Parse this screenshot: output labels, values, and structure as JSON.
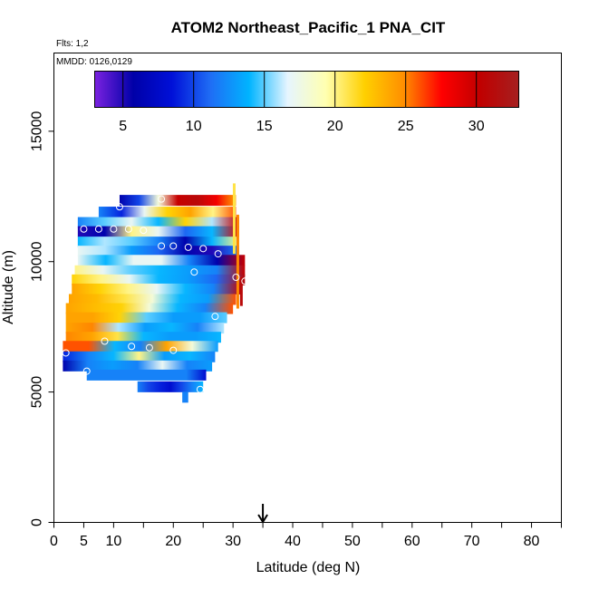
{
  "chart_data": {
    "type": "heatmap",
    "title": "ATOM2 Northeast_Pacific_1 PNA_CIT",
    "flights_text": "Flts: 1,2",
    "dates_text": "MMDD: 0126,0129",
    "xlabel": "Latitude (deg N)",
    "ylabel": "Altitude (m)",
    "xlim": [
      0,
      85
    ],
    "ylim": [
      0,
      18000
    ],
    "x_ticks": [
      0,
      5,
      10,
      20,
      30,
      40,
      50,
      60,
      70,
      80
    ],
    "x_minor_ticks": [
      15,
      25,
      35,
      45,
      55,
      65,
      75,
      85
    ],
    "y_ticks": [
      0,
      5000,
      10000,
      15000
    ],
    "colorbar": {
      "range": [
        3,
        33
      ],
      "ticks": [
        5,
        10,
        15,
        20,
        25,
        30
      ],
      "colors": [
        "#7b22e0",
        "#0000a8",
        "#0010d8",
        "#1f6df5",
        "#00b4ff",
        "#e6f5ff",
        "#ffffb0",
        "#ffd000",
        "#ff9000",
        "#ff0000",
        "#c00000",
        "#a52020"
      ]
    },
    "marker_latitude": 35,
    "profile_rows": [
      {
        "alt": 12350,
        "lat_start": 11,
        "lat_end": 30.5,
        "values": [
          6,
          10,
          18,
          30,
          31,
          28,
          24
        ]
      },
      {
        "alt": 11900,
        "lat_start": 7.5,
        "lat_end": 30.5,
        "values": [
          12,
          9,
          17,
          22,
          24,
          20,
          26
        ]
      },
      {
        "alt": 11500,
        "lat_start": 4,
        "lat_end": 31,
        "values": [
          12,
          15,
          17,
          14,
          22,
          16,
          30
        ]
      },
      {
        "alt": 11150,
        "lat_start": 4,
        "lat_end": 31,
        "values": [
          5,
          6,
          20,
          17,
          11,
          14,
          29
        ]
      },
      {
        "alt": 10750,
        "lat_start": 4,
        "lat_end": 31,
        "values": [
          14,
          16,
          15,
          12,
          6,
          14,
          20
        ]
      },
      {
        "alt": 10400,
        "lat_start": 4,
        "lat_end": 31,
        "values": [
          17,
          16,
          13,
          11,
          6,
          5,
          12
        ]
      },
      {
        "alt": 10050,
        "lat_start": 4,
        "lat_end": 32,
        "values": [
          17,
          14,
          17,
          17,
          12,
          6,
          30
        ]
      },
      {
        "alt": 9650,
        "lat_start": 3.5,
        "lat_end": 32,
        "values": [
          20,
          17,
          15,
          14,
          13,
          12,
          30
        ]
      },
      {
        "alt": 9300,
        "lat_start": 3,
        "lat_end": 32,
        "values": [
          22,
          20,
          17,
          14,
          13,
          11,
          31
        ]
      },
      {
        "alt": 8950,
        "lat_start": 3,
        "lat_end": 31.5,
        "values": [
          24,
          22,
          20,
          17,
          14,
          12,
          30
        ]
      },
      {
        "alt": 8550,
        "lat_start": 2.5,
        "lat_end": 30.5,
        "values": [
          24,
          23,
          21,
          18,
          14,
          13,
          26
        ]
      },
      {
        "alt": 8200,
        "lat_start": 2,
        "lat_end": 30,
        "values": [
          24,
          23,
          22,
          18,
          14,
          12,
          26
        ]
      },
      {
        "alt": 7850,
        "lat_start": 2,
        "lat_end": 29,
        "values": [
          24,
          24,
          22,
          15,
          13,
          13,
          15
        ]
      },
      {
        "alt": 7450,
        "lat_start": 2,
        "lat_end": 28.5,
        "values": [
          24,
          25,
          16,
          13,
          14,
          12,
          16
        ]
      },
      {
        "alt": 7100,
        "lat_start": 2,
        "lat_end": 28,
        "values": [
          25,
          24,
          21,
          14,
          13,
          13,
          14
        ]
      },
      {
        "alt": 6750,
        "lat_start": 1.5,
        "lat_end": 27.5,
        "values": [
          26,
          26,
          14,
          12,
          24,
          18,
          13
        ]
      },
      {
        "alt": 6350,
        "lat_start": 1.5,
        "lat_end": 27,
        "values": [
          9,
          12,
          14,
          20,
          13,
          14,
          12
        ]
      },
      {
        "alt": 6000,
        "lat_start": 1.5,
        "lat_end": 26.5,
        "values": [
          6,
          12,
          13,
          12,
          17,
          12,
          13
        ]
      },
      {
        "alt": 5650,
        "lat_start": 5.5,
        "lat_end": 25.5,
        "values": [
          12,
          12,
          12,
          12,
          12,
          12,
          8
        ]
      },
      {
        "alt": 5200,
        "lat_start": 14,
        "lat_end": 25,
        "values": [
          12,
          10,
          9,
          8,
          10,
          12,
          14
        ]
      },
      {
        "alt": 4800,
        "lat_start": 21.5,
        "lat_end": 22.5,
        "values": [
          12
        ]
      }
    ],
    "vertical_strips": [
      {
        "lat": 30.2,
        "alt_start": 10300,
        "alt_end": 13000,
        "value": 21
      },
      {
        "lat": 30.8,
        "alt_start": 8200,
        "alt_end": 11800,
        "value": 25
      },
      {
        "lat": 31.4,
        "alt_start": 8300,
        "alt_end": 9400,
        "value": 31
      }
    ],
    "points": [
      {
        "lat": 18,
        "alt": 12400
      },
      {
        "lat": 11,
        "alt": 12100
      },
      {
        "lat": 5,
        "alt": 11250
      },
      {
        "lat": 7.5,
        "alt": 11250
      },
      {
        "lat": 10,
        "alt": 11250
      },
      {
        "lat": 12.5,
        "alt": 11250
      },
      {
        "lat": 15,
        "alt": 11200
      },
      {
        "lat": 18,
        "alt": 10600
      },
      {
        "lat": 20,
        "alt": 10600
      },
      {
        "lat": 22.5,
        "alt": 10550
      },
      {
        "lat": 25,
        "alt": 10500
      },
      {
        "lat": 27.5,
        "alt": 10300
      },
      {
        "lat": 23.5,
        "alt": 9600
      },
      {
        "lat": 30.5,
        "alt": 9400
      },
      {
        "lat": 32,
        "alt": 9250
      },
      {
        "lat": 27,
        "alt": 7900
      },
      {
        "lat": 8.5,
        "alt": 6950
      },
      {
        "lat": 13,
        "alt": 6750
      },
      {
        "lat": 16,
        "alt": 6700
      },
      {
        "lat": 20,
        "alt": 6600
      },
      {
        "lat": 2,
        "alt": 6500
      },
      {
        "lat": 5.5,
        "alt": 5800
      },
      {
        "lat": 24.5,
        "alt": 5100
      }
    ]
  }
}
